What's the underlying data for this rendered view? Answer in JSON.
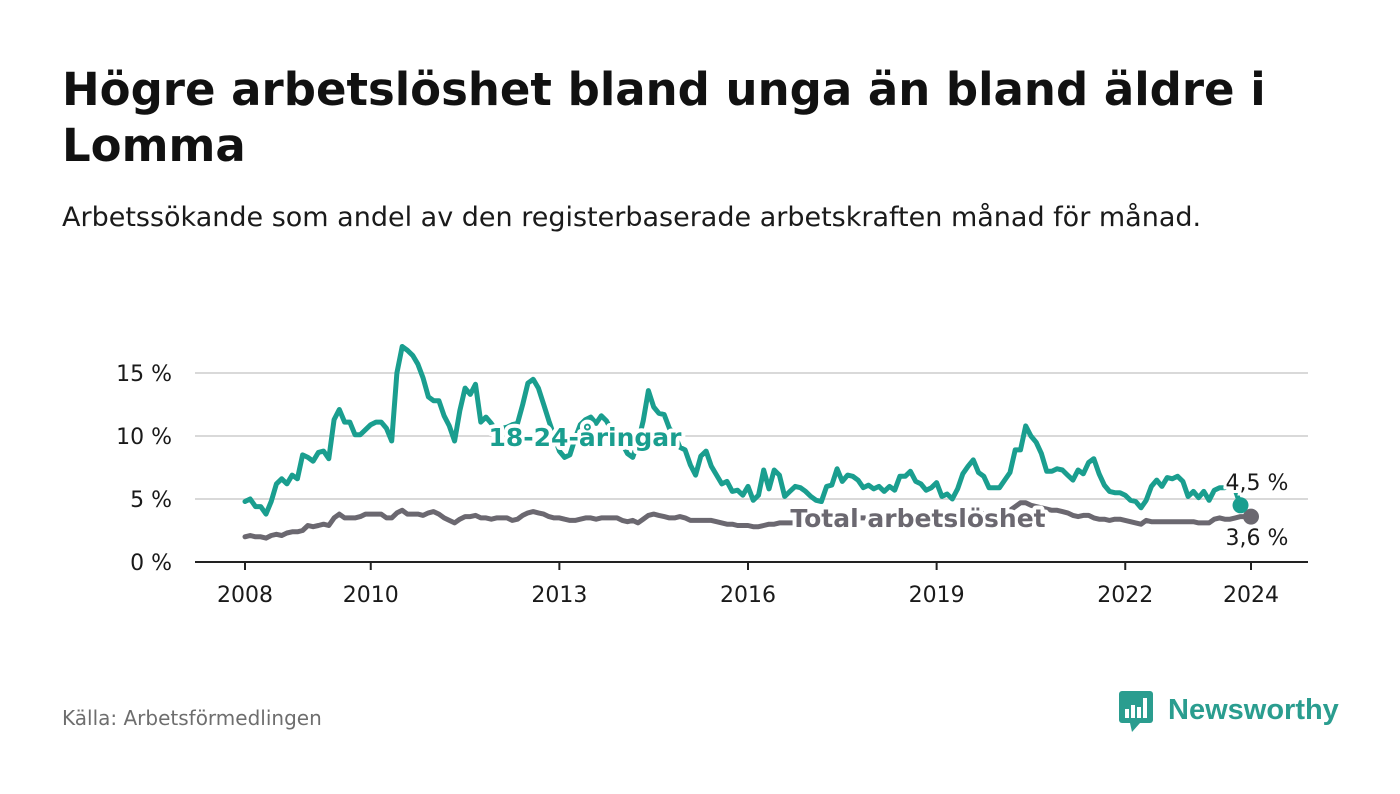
{
  "title": "Högre arbetslöshet bland unga än bland äldre i Lomma",
  "subtitle": "Arbetssökande som andel av den registerbaserade arbetskraften månad för månad.",
  "source": "Källa: Arbetsförmedlingen",
  "brand": "Newsworthy",
  "colors": {
    "youth": "#1a9e8f",
    "total": "#6b6870",
    "grid": "#d9d9d9",
    "axis": "#222222"
  },
  "chart_data": {
    "type": "line",
    "title": "Högre arbetslöshet bland unga än bland äldre i Lomma",
    "xlabel": "",
    "ylabel": "",
    "x_start": 2008.0,
    "step_years": 0.0833333,
    "xlim": [
      2007.2,
      2024.9
    ],
    "ylim": [
      0,
      16
    ],
    "yticks": [
      0,
      5,
      10,
      15
    ],
    "ytick_labels": [
      "0 %",
      "5 %",
      "10 %",
      "15 %"
    ],
    "xticks": [
      2008,
      2010,
      2013,
      2016,
      2019,
      2022,
      2024
    ],
    "xtick_labels": [
      "2008",
      "2010",
      "2013",
      "2016",
      "2019",
      "2022",
      "2024"
    ],
    "grid": true,
    "series": [
      {
        "name": "18-24-åringar",
        "end_label": "4,5 %",
        "values": [
          4.8,
          5.0,
          4.4,
          4.4,
          3.8,
          4.8,
          6.2,
          6.6,
          6.2,
          6.9,
          6.6,
          8.5,
          8.3,
          8.0,
          8.7,
          8.8,
          8.2,
          11.3,
          12.1,
          11.1,
          11.1,
          10.1,
          10.1,
          10.5,
          10.9,
          11.1,
          11.1,
          10.6,
          9.6,
          15.0,
          17.1,
          16.8,
          16.4,
          15.7,
          14.6,
          13.1,
          12.8,
          12.8,
          11.6,
          10.8,
          9.6,
          12.0,
          13.8,
          13.3,
          14.1,
          11.1,
          11.5,
          11.0,
          10.4,
          10.6,
          10.7,
          10.9,
          11.0,
          12.5,
          14.2,
          14.5,
          13.8,
          12.5,
          11.2,
          10.0,
          8.8,
          8.3,
          8.5,
          9.8,
          10.9,
          11.3,
          11.5,
          11.0,
          11.6,
          11.2,
          10.4,
          10.0,
          9.4,
          8.6,
          8.3,
          9.5,
          11.2,
          13.6,
          12.3,
          11.8,
          11.7,
          10.6,
          10.1,
          9.1,
          8.9,
          7.7,
          6.9,
          8.4,
          8.8,
          7.6,
          6.9,
          6.2,
          6.4,
          5.6,
          5.7,
          5.3,
          6.0,
          4.9,
          5.3,
          7.3,
          5.8,
          7.3,
          6.9,
          5.2,
          5.6,
          6.0,
          5.9,
          5.6,
          5.2,
          4.9,
          4.8,
          6.0,
          6.1,
          7.4,
          6.4,
          6.9,
          6.8,
          6.5,
          5.9,
          6.1,
          5.8,
          6.0,
          5.6,
          6.0,
          5.7,
          6.8,
          6.8,
          7.2,
          6.4,
          6.2,
          5.7,
          5.9,
          6.3,
          5.2,
          5.4,
          5.0,
          5.8,
          7.0,
          7.6,
          8.1,
          7.1,
          6.8,
          5.9,
          5.9,
          5.9,
          6.5,
          7.1,
          8.9,
          8.9,
          10.8,
          10.0,
          9.5,
          8.6,
          7.2,
          7.2,
          7.4,
          7.3,
          6.9,
          6.5,
          7.3,
          7.0,
          7.9,
          8.2,
          7.0,
          6.1,
          5.6,
          5.5,
          5.5,
          5.3,
          4.9,
          4.8,
          4.3,
          4.9,
          6.0,
          6.5,
          6.0,
          6.7,
          6.6,
          6.8,
          6.4,
          5.2,
          5.6,
          5.1,
          5.6,
          4.9,
          5.7,
          5.9,
          5.9,
          6.3,
          5.7,
          4.5
        ]
      },
      {
        "name": "Total arbetslöshet",
        "end_label": "3,6 %",
        "values": [
          2.0,
          2.1,
          2.0,
          2.0,
          1.9,
          2.1,
          2.2,
          2.1,
          2.3,
          2.4,
          2.4,
          2.5,
          2.9,
          2.8,
          2.9,
          3.0,
          2.9,
          3.5,
          3.8,
          3.5,
          3.5,
          3.5,
          3.6,
          3.8,
          3.8,
          3.8,
          3.8,
          3.5,
          3.5,
          3.9,
          4.1,
          3.8,
          3.8,
          3.8,
          3.7,
          3.9,
          4.0,
          3.8,
          3.5,
          3.3,
          3.1,
          3.4,
          3.6,
          3.6,
          3.7,
          3.5,
          3.5,
          3.4,
          3.5,
          3.5,
          3.5,
          3.3,
          3.4,
          3.7,
          3.9,
          4.0,
          3.9,
          3.8,
          3.6,
          3.5,
          3.5,
          3.4,
          3.3,
          3.3,
          3.4,
          3.5,
          3.5,
          3.4,
          3.5,
          3.5,
          3.5,
          3.5,
          3.3,
          3.2,
          3.3,
          3.1,
          3.4,
          3.7,
          3.8,
          3.7,
          3.6,
          3.5,
          3.5,
          3.6,
          3.5,
          3.3,
          3.3,
          3.3,
          3.3,
          3.3,
          3.2,
          3.1,
          3.0,
          3.0,
          2.9,
          2.9,
          2.9,
          2.8,
          2.8,
          2.9,
          3.0,
          3.0,
          3.1,
          3.1,
          3.1,
          3.1,
          3.2,
          3.2,
          3.3,
          3.2,
          3.3,
          3.3,
          3.4,
          3.6,
          3.5,
          3.5,
          3.6,
          3.5,
          3.5,
          3.5,
          3.4,
          3.5,
          3.5,
          3.5,
          3.5,
          3.6,
          3.7,
          3.6,
          3.5,
          3.5,
          3.4,
          3.5,
          3.6,
          3.4,
          3.5,
          3.4,
          3.6,
          3.8,
          3.9,
          4.0,
          3.9,
          3.8,
          3.7,
          3.8,
          3.9,
          4.0,
          4.1,
          4.4,
          4.7,
          4.7,
          4.5,
          4.4,
          4.3,
          4.2,
          4.1,
          4.1,
          4.0,
          3.9,
          3.7,
          3.6,
          3.7,
          3.7,
          3.5,
          3.4,
          3.4,
          3.3,
          3.4,
          3.4,
          3.3,
          3.2,
          3.1,
          3.0,
          3.3,
          3.2,
          3.2,
          3.2,
          3.2,
          3.2,
          3.2,
          3.2,
          3.2,
          3.2,
          3.1,
          3.1,
          3.1,
          3.4,
          3.5,
          3.4,
          3.4,
          3.5,
          3.6,
          3.6,
          3.6
        ]
      }
    ],
    "annotations": [
      "18-24-åringar",
      "Total arbetslöshet"
    ]
  }
}
